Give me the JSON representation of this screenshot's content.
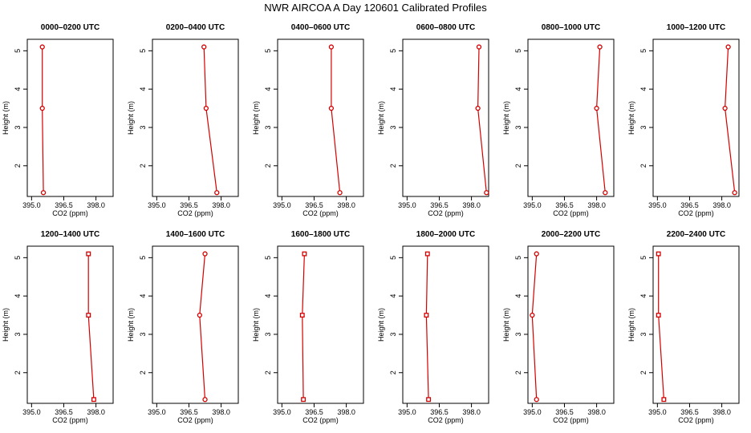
{
  "figure": {
    "title": "NWR AIRCOA A  Day 120601  Calibrated Profiles"
  },
  "style": {
    "line_color": "#d40000",
    "marker_color": "#d40000",
    "axis_color": "#000000"
  },
  "chart_data": [
    {
      "type": "line",
      "title": "0000–0200 UTC",
      "xlabel": "CO2 (ppm)",
      "ylabel": "Height (m)",
      "xlim": [
        394.8,
        398.8
      ],
      "ylim": [
        1.2,
        5.3
      ],
      "xticks": [
        "395.0",
        "396.5",
        "398.0"
      ],
      "yticks": [
        "2",
        "3",
        "4",
        "5"
      ],
      "grid": false,
      "marker": "circle",
      "x": [
        395.55,
        395.5,
        395.5
      ],
      "y": [
        1.3,
        3.5,
        5.1
      ]
    },
    {
      "type": "line",
      "title": "0200–0400 UTC",
      "xlabel": "CO2 (ppm)",
      "ylabel": "Height (m)",
      "xlim": [
        394.8,
        398.8
      ],
      "ylim": [
        1.2,
        5.3
      ],
      "xticks": [
        "395.0",
        "396.5",
        "398.0"
      ],
      "yticks": [
        "2",
        "3",
        "4",
        "5"
      ],
      "grid": false,
      "marker": "circle",
      "x": [
        397.8,
        397.3,
        397.2
      ],
      "y": [
        1.3,
        3.5,
        5.1
      ]
    },
    {
      "type": "line",
      "title": "0400–0600 UTC",
      "xlabel": "CO2 (ppm)",
      "ylabel": "Height (m)",
      "xlim": [
        394.8,
        398.8
      ],
      "ylim": [
        1.2,
        5.3
      ],
      "xticks": [
        "395.0",
        "396.5",
        "398.0"
      ],
      "yticks": [
        "2",
        "3",
        "4",
        "5"
      ],
      "grid": false,
      "marker": "circle",
      "x": [
        397.7,
        397.3,
        397.3
      ],
      "y": [
        1.3,
        3.5,
        5.1
      ]
    },
    {
      "type": "line",
      "title": "0600–0800 UTC",
      "xlabel": "CO2 (ppm)",
      "ylabel": "Height (m)",
      "xlim": [
        394.8,
        398.8
      ],
      "ylim": [
        1.2,
        5.3
      ],
      "xticks": [
        "395.0",
        "396.5",
        "398.0"
      ],
      "yticks": [
        "2",
        "3",
        "4",
        "5"
      ],
      "grid": false,
      "marker": "circle",
      "x": [
        398.7,
        398.3,
        398.35
      ],
      "y": [
        1.3,
        3.5,
        5.1
      ]
    },
    {
      "type": "line",
      "title": "0800–1000 UTC",
      "xlabel": "CO2 (ppm)",
      "ylabel": "Height (m)",
      "xlim": [
        394.8,
        398.8
      ],
      "ylim": [
        1.2,
        5.3
      ],
      "xticks": [
        "395.0",
        "396.5",
        "398.0"
      ],
      "yticks": [
        "2",
        "3",
        "4",
        "5"
      ],
      "grid": false,
      "marker": "circle",
      "x": [
        398.4,
        398.0,
        398.15
      ],
      "y": [
        1.3,
        3.5,
        5.1
      ]
    },
    {
      "type": "line",
      "title": "1000–1200 UTC",
      "xlabel": "CO2 (ppm)",
      "ylabel": "Height (m)",
      "xlim": [
        394.8,
        398.8
      ],
      "ylim": [
        1.2,
        5.3
      ],
      "xticks": [
        "395.0",
        "396.5",
        "398.0"
      ],
      "yticks": [
        "2",
        "3",
        "4",
        "5"
      ],
      "grid": false,
      "marker": "circle",
      "x": [
        398.6,
        398.15,
        398.3
      ],
      "y": [
        1.3,
        3.5,
        5.1
      ]
    },
    {
      "type": "line",
      "title": "1200–1400 UTC",
      "xlabel": "CO2 (ppm)",
      "ylabel": "Height (m)",
      "xlim": [
        394.8,
        398.8
      ],
      "ylim": [
        1.2,
        5.3
      ],
      "xticks": [
        "395.0",
        "396.5",
        "398.0"
      ],
      "yticks": [
        "2",
        "3",
        "4",
        "5"
      ],
      "grid": false,
      "marker": "square",
      "x": [
        397.9,
        397.65,
        397.65
      ],
      "y": [
        1.3,
        3.5,
        5.1
      ]
    },
    {
      "type": "line",
      "title": "1400–1600 UTC",
      "xlabel": "CO2 (ppm)",
      "ylabel": "Height (m)",
      "xlim": [
        394.8,
        398.8
      ],
      "ylim": [
        1.2,
        5.3
      ],
      "xticks": [
        "395.0",
        "396.5",
        "398.0"
      ],
      "yticks": [
        "2",
        "3",
        "4",
        "5"
      ],
      "grid": false,
      "marker": "circle",
      "x": [
        397.25,
        397.0,
        397.25
      ],
      "y": [
        1.3,
        3.5,
        5.1
      ]
    },
    {
      "type": "line",
      "title": "1600–1800 UTC",
      "xlabel": "CO2 (ppm)",
      "ylabel": "Height (m)",
      "xlim": [
        394.8,
        398.8
      ],
      "ylim": [
        1.2,
        5.3
      ],
      "xticks": [
        "395.0",
        "396.5",
        "398.0"
      ],
      "yticks": [
        "2",
        "3",
        "4",
        "5"
      ],
      "grid": false,
      "marker": "square",
      "x": [
        396.0,
        395.95,
        396.05
      ],
      "y": [
        1.3,
        3.5,
        5.1
      ]
    },
    {
      "type": "line",
      "title": "1800–2000 UTC",
      "xlabel": "CO2 (ppm)",
      "ylabel": "Height (m)",
      "xlim": [
        394.8,
        398.8
      ],
      "ylim": [
        1.2,
        5.3
      ],
      "xticks": [
        "395.0",
        "396.5",
        "398.0"
      ],
      "yticks": [
        "2",
        "3",
        "4",
        "5"
      ],
      "grid": false,
      "marker": "square",
      "x": [
        396.0,
        395.9,
        395.95
      ],
      "y": [
        1.3,
        3.5,
        5.1
      ]
    },
    {
      "type": "line",
      "title": "2000–2200 UTC",
      "xlabel": "CO2 (ppm)",
      "ylabel": "Height (m)",
      "xlim": [
        394.8,
        398.8
      ],
      "ylim": [
        1.2,
        5.3
      ],
      "xticks": [
        "395.0",
        "396.5",
        "398.0"
      ],
      "yticks": [
        "2",
        "3",
        "4",
        "5"
      ],
      "grid": false,
      "marker": "circle",
      "x": [
        395.2,
        395.0,
        395.2
      ],
      "y": [
        1.3,
        3.5,
        5.1
      ]
    },
    {
      "type": "line",
      "title": "2200–2400 UTC",
      "xlabel": "CO2 (ppm)",
      "ylabel": "Height (m)",
      "xlim": [
        394.8,
        398.8
      ],
      "ylim": [
        1.2,
        5.3
      ],
      "xticks": [
        "395.0",
        "396.5",
        "398.0"
      ],
      "yticks": [
        "2",
        "3",
        "4",
        "5"
      ],
      "grid": false,
      "marker": "square",
      "x": [
        395.3,
        395.05,
        395.05
      ],
      "y": [
        1.3,
        3.5,
        5.1
      ]
    }
  ]
}
